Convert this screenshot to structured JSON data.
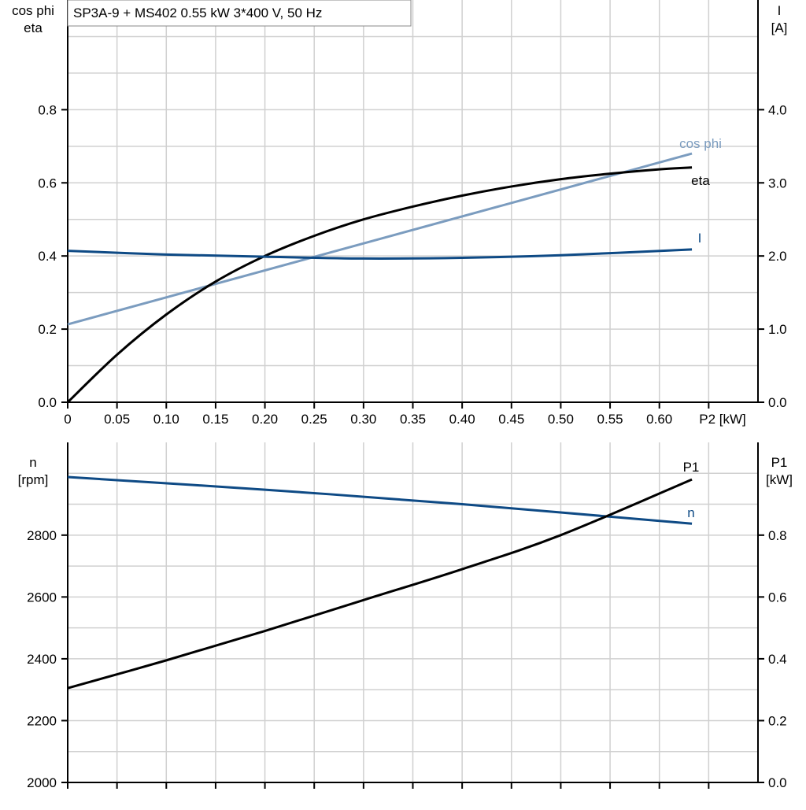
{
  "title": "SP3A-9 + MS402   0.55 kW   3*400 V, 50 Hz",
  "colors": {
    "cos_phi": "#7b9cbf",
    "eta": "#000000",
    "I": "#0e4a85",
    "n": "#0e4a85",
    "P1": "#000000",
    "grid": "#d0d0d0"
  },
  "chart_data": [
    {
      "type": "line",
      "xlabel": "P2 [kW]",
      "xlim": [
        0,
        0.7
      ],
      "xticks": [
        "0",
        "0.05",
        "0.10",
        "0.15",
        "0.20",
        "0.25",
        "0.30",
        "0.35",
        "0.40",
        "0.45",
        "0.50",
        "0.55",
        "0.60"
      ],
      "ylabel_left": [
        "cos phi",
        "eta"
      ],
      "ylim_left": [
        0,
        1.1
      ],
      "yticks_left": [
        "0.0",
        "0.2",
        "0.4",
        "0.6",
        "0.8"
      ],
      "ylabel_right": [
        "I",
        "[A]"
      ],
      "ylim_right": [
        0,
        5.5
      ],
      "yticks_right": [
        "0.0",
        "1.0",
        "2.0",
        "3.0",
        "4.0"
      ],
      "grid": true,
      "series": [
        {
          "name": "cos phi",
          "axis": "left",
          "x": [
            0,
            0.633
          ],
          "y": [
            0.213,
            0.68
          ]
        },
        {
          "name": "eta",
          "axis": "left",
          "x": [
            0,
            0.05,
            0.1,
            0.15,
            0.2,
            0.25,
            0.3,
            0.35,
            0.4,
            0.45,
            0.5,
            0.55,
            0.6,
            0.633
          ],
          "y": [
            0,
            0.13,
            0.24,
            0.33,
            0.4,
            0.455,
            0.5,
            0.535,
            0.565,
            0.59,
            0.61,
            0.625,
            0.637,
            0.642
          ]
        },
        {
          "name": "I",
          "axis": "right",
          "x": [
            0,
            0.1,
            0.2,
            0.3,
            0.4,
            0.5,
            0.633
          ],
          "y": [
            2.07,
            2.02,
            1.99,
            1.965,
            1.975,
            2.01,
            2.09
          ]
        }
      ]
    },
    {
      "type": "line",
      "xlim": [
        0,
        0.7
      ],
      "ylabel_left": [
        "n",
        "[rpm]"
      ],
      "ylim_left": [
        2000,
        3100
      ],
      "yticks_left": [
        "2000",
        "2200",
        "2400",
        "2600",
        "2800"
      ],
      "ylabel_right": [
        "P1",
        "[kW]"
      ],
      "ylim_right": [
        0,
        1.1
      ],
      "yticks_right": [
        "0.0",
        "0.2",
        "0.4",
        "0.6",
        "0.8"
      ],
      "grid": true,
      "series": [
        {
          "name": "n",
          "axis": "left",
          "x": [
            0,
            0.2,
            0.4,
            0.633
          ],
          "y": [
            2988,
            2947,
            2900,
            2837
          ]
        },
        {
          "name": "P1",
          "axis": "right",
          "x": [
            0,
            0.1,
            0.2,
            0.3,
            0.4,
            0.5,
            0.633
          ],
          "y": [
            0.305,
            0.395,
            0.49,
            0.59,
            0.69,
            0.8,
            0.98
          ]
        }
      ]
    }
  ]
}
